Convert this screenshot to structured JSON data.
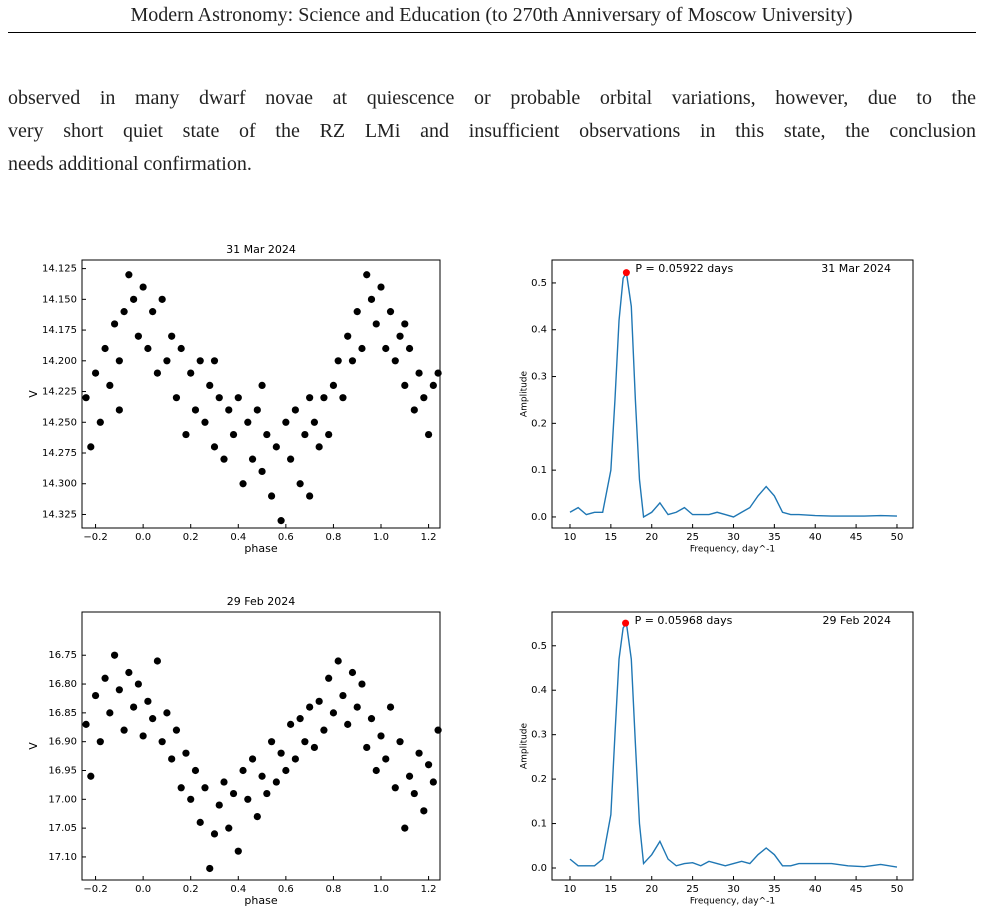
{
  "header": {
    "title": "Modern Astronomy: Science and Education (to 270th Anniversary of Moscow University)"
  },
  "paragraph": {
    "lines": [
      "observed in many dwarf novae at quiescence or probable orbital variations, however, due to the",
      "very short quiet state of the RZ LMi and insufficient observations in this state, the conclusion",
      "needs additional confirmation."
    ]
  },
  "chart_data": [
    {
      "type": "scatter",
      "title": "31 Mar 2024",
      "xlabel": "phase",
      "ylabel": "V",
      "color": "#000000",
      "y_inverted": true,
      "xlim": [
        -0.257,
        1.248
      ],
      "ylim": [
        14.118,
        14.336
      ],
      "xticks": [
        {
          "value": -0.2,
          "label": "−0.2"
        },
        {
          "value": 0,
          "label": "0.0"
        },
        0.2,
        0.4,
        0.6,
        0.8,
        {
          "value": 1,
          "label": "1.0"
        },
        1.2
      ],
      "yticks": [
        14.125,
        {
          "value": 14.15,
          "label": "14.150"
        },
        14.175,
        {
          "value": 14.2,
          "label": "14.200"
        },
        14.225,
        {
          "value": 14.25,
          "label": "14.250"
        },
        14.275,
        {
          "value": 14.3,
          "label": "14.300"
        },
        14.325
      ],
      "x": [
        -0.24,
        -0.22,
        -0.2,
        -0.18,
        -0.16,
        -0.14,
        -0.12,
        -0.1,
        -0.08,
        -0.06,
        -0.04,
        -0.02,
        0,
        0.02,
        0.04,
        0.06,
        0.08,
        0.1,
        0.12,
        0.14,
        0.16,
        0.18,
        0.2,
        0.22,
        0.24,
        0.26,
        0.28,
        0.3,
        0.32,
        0.34,
        0.36,
        0.38,
        0.4,
        0.42,
        0.44,
        0.46,
        0.48,
        0.5,
        0.52,
        0.54,
        0.56,
        0.58,
        0.6,
        0.62,
        0.64,
        0.66,
        0.68,
        0.7,
        0.72,
        0.74,
        0.76,
        0.78,
        0.8,
        0.82,
        0.84,
        0.86,
        0.88,
        0.9,
        0.92,
        0.94,
        0.96,
        0.98,
        1.0,
        1.02,
        1.04,
        1.06,
        1.08,
        1.1,
        1.12,
        1.14,
        1.16,
        1.18,
        1.2,
        1.22,
        1.24,
        0.3,
        0.5,
        0.7,
        -0.1,
        1.1
      ],
      "values": [
        14.23,
        14.27,
        14.21,
        14.25,
        14.19,
        14.22,
        14.17,
        14.2,
        14.16,
        14.13,
        14.15,
        14.18,
        14.14,
        14.19,
        14.16,
        14.21,
        14.15,
        14.2,
        14.18,
        14.23,
        14.19,
        14.26,
        14.21,
        14.24,
        14.2,
        14.25,
        14.22,
        14.27,
        14.23,
        14.28,
        14.24,
        14.26,
        14.23,
        14.3,
        14.25,
        14.28,
        14.24,
        14.29,
        14.26,
        14.31,
        14.27,
        14.33,
        14.25,
        14.28,
        14.24,
        14.3,
        14.26,
        14.31,
        14.25,
        14.27,
        14.23,
        14.26,
        14.22,
        14.2,
        14.23,
        14.18,
        14.2,
        14.16,
        14.19,
        14.13,
        14.15,
        14.17,
        14.14,
        14.19,
        14.16,
        14.2,
        14.18,
        14.22,
        14.19,
        14.24,
        14.21,
        14.23,
        14.26,
        14.22,
        14.21,
        14.2,
        14.22,
        14.23,
        14.24,
        14.17
      ]
    },
    {
      "type": "line",
      "annotation": "P = 0.05922 days",
      "label": "31 Mar 2024",
      "xlabel": "Frequency, day^-1",
      "ylabel": "Amplitude",
      "color": "#1f77b4",
      "xlim": [
        7.8,
        51.96
      ],
      "ylim": [
        -0.0236,
        0.549
      ],
      "xticks": [
        10,
        15,
        20,
        25,
        30,
        35,
        40,
        45,
        50
      ],
      "yticks": [
        {
          "value": 0,
          "label": "0.0"
        },
        0.1,
        0.2,
        0.3,
        0.4,
        0.5
      ],
      "peak": {
        "x": 16.9,
        "y": 0.522,
        "color": "#ff0000"
      },
      "x": [
        10,
        11,
        12,
        13,
        14,
        15,
        15.5,
        16,
        16.5,
        16.9,
        17.5,
        18,
        18.5,
        19,
        20,
        21,
        22,
        23,
        24,
        25,
        26,
        27,
        28,
        29,
        30,
        31,
        32,
        33,
        34,
        35,
        36,
        37,
        38,
        40,
        42,
        44,
        46,
        48,
        50
      ],
      "values": [
        0.01,
        0.02,
        0.005,
        0.01,
        0.01,
        0.1,
        0.25,
        0.42,
        0.51,
        0.522,
        0.45,
        0.25,
        0.08,
        0.0,
        0.01,
        0.03,
        0.005,
        0.01,
        0.02,
        0.005,
        0.005,
        0.005,
        0.01,
        0.005,
        0.0,
        0.01,
        0.02,
        0.045,
        0.065,
        0.045,
        0.01,
        0.005,
        0.005,
        0.003,
        0.002,
        0.002,
        0.002,
        0.003,
        0.002
      ]
    },
    {
      "type": "scatter",
      "title": "29 Feb 2024",
      "xlabel": "phase",
      "ylabel": "V",
      "color": "#000000",
      "y_inverted": true,
      "xlim": [
        -0.257,
        1.248
      ],
      "ylim": [
        16.675,
        17.14
      ],
      "xticks": [
        {
          "value": -0.2,
          "label": "−0.2"
        },
        {
          "value": 0,
          "label": "0.0"
        },
        0.2,
        0.4,
        0.6,
        0.8,
        {
          "value": 1,
          "label": "1.0"
        },
        1.2
      ],
      "yticks": [
        16.75,
        {
          "value": 16.8,
          "label": "16.80"
        },
        16.85,
        {
          "value": 16.9,
          "label": "16.90"
        },
        16.95,
        {
          "value": 17,
          "label": "17.00"
        },
        17.05,
        {
          "value": 17.1,
          "label": "17.10"
        }
      ],
      "x": [
        -0.24,
        -0.22,
        -0.2,
        -0.18,
        -0.16,
        -0.14,
        -0.12,
        -0.1,
        -0.08,
        -0.06,
        -0.04,
        -0.02,
        0,
        0.02,
        0.04,
        0.06,
        0.08,
        0.1,
        0.12,
        0.14,
        0.16,
        0.18,
        0.2,
        0.22,
        0.24,
        0.26,
        0.28,
        0.3,
        0.32,
        0.34,
        0.36,
        0.38,
        0.4,
        0.42,
        0.44,
        0.46,
        0.48,
        0.5,
        0.52,
        0.54,
        0.56,
        0.58,
        0.6,
        0.62,
        0.64,
        0.66,
        0.68,
        0.7,
        0.72,
        0.74,
        0.76,
        0.78,
        0.8,
        0.82,
        0.84,
        0.86,
        0.88,
        0.9,
        0.92,
        0.94,
        0.96,
        0.98,
        1.0,
        1.02,
        1.04,
        1.06,
        1.08,
        1.1,
        1.12,
        1.14,
        1.16,
        1.18,
        1.2,
        1.22,
        1.24
      ],
      "values": [
        16.87,
        16.96,
        16.82,
        16.9,
        16.79,
        16.85,
        16.75,
        16.81,
        16.88,
        16.78,
        16.84,
        16.8,
        16.89,
        16.83,
        16.86,
        16.76,
        16.9,
        16.85,
        16.93,
        16.88,
        16.98,
        16.92,
        17.0,
        16.95,
        17.04,
        16.98,
        17.12,
        17.06,
        17.01,
        16.97,
        17.05,
        16.99,
        17.09,
        16.95,
        17.0,
        16.93,
        17.03,
        16.96,
        16.99,
        16.9,
        16.97,
        16.92,
        16.95,
        16.87,
        16.93,
        16.86,
        16.9,
        16.84,
        16.91,
        16.83,
        16.88,
        16.79,
        16.85,
        16.76,
        16.82,
        16.87,
        16.78,
        16.84,
        16.8,
        16.91,
        16.86,
        16.95,
        16.89,
        16.93,
        16.84,
        16.98,
        16.9,
        17.05,
        16.96,
        16.99,
        16.92,
        17.02,
        16.94,
        16.97,
        16.88
      ]
    },
    {
      "type": "line",
      "annotation": "P = 0.05968 days",
      "label": "29 Feb 2024",
      "xlabel": "Frequency, day^-1",
      "ylabel": "Amplitude",
      "color": "#1f77b4",
      "xlim": [
        7.8,
        51.96
      ],
      "ylim": [
        -0.027,
        0.576
      ],
      "xticks": [
        10,
        15,
        20,
        25,
        30,
        35,
        40,
        45,
        50
      ],
      "yticks": [
        {
          "value": 0,
          "label": "0.0"
        },
        0.1,
        0.2,
        0.3,
        0.4,
        0.5
      ],
      "peak": {
        "x": 16.8,
        "y": 0.551,
        "color": "#ff0000"
      },
      "x": [
        10,
        11,
        12,
        13,
        14,
        15,
        15.5,
        16,
        16.5,
        16.9,
        17.5,
        18,
        18.5,
        19,
        20,
        21,
        22,
        23,
        24,
        25,
        26,
        27,
        28,
        29,
        30,
        31,
        32,
        33,
        34,
        35,
        36,
        37,
        38,
        40,
        42,
        44,
        46,
        48,
        50
      ],
      "values": [
        0.02,
        0.005,
        0.005,
        0.005,
        0.02,
        0.12,
        0.3,
        0.47,
        0.54,
        0.551,
        0.47,
        0.28,
        0.1,
        0.01,
        0.03,
        0.06,
        0.02,
        0.005,
        0.01,
        0.012,
        0.005,
        0.015,
        0.01,
        0.005,
        0.01,
        0.015,
        0.01,
        0.03,
        0.045,
        0.03,
        0.005,
        0.005,
        0.01,
        0.01,
        0.01,
        0.005,
        0.003,
        0.008,
        0.002
      ]
    }
  ]
}
